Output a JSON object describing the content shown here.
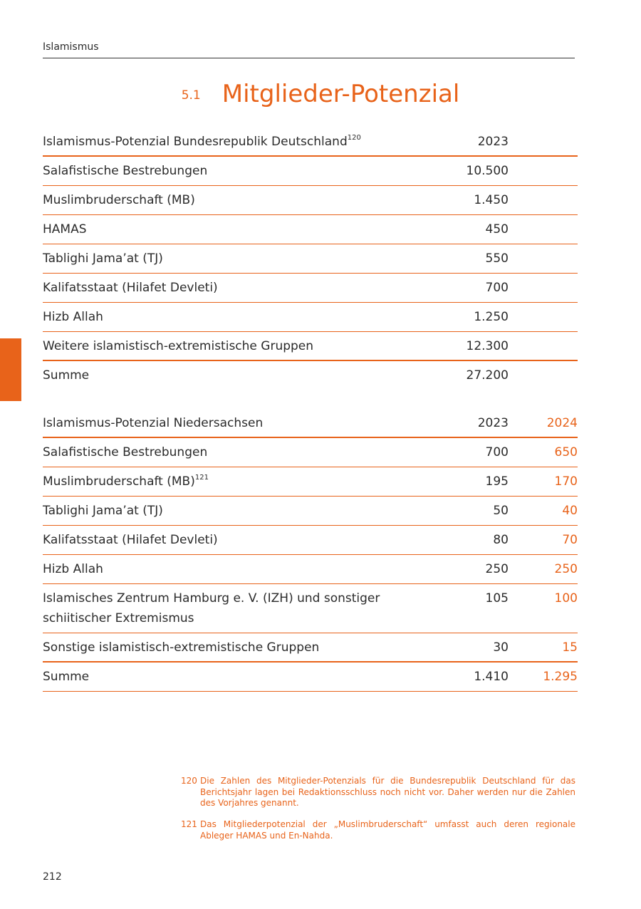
{
  "header": {
    "running_title": "Islamismus"
  },
  "section": {
    "number": "5.1",
    "title": "Mitglieder-Potenzial"
  },
  "tables": [
    {
      "header": {
        "cells": [
          "Islamismus-Potenzial Bundesrepublik Deutschland",
          "2023"
        ],
        "footnote_ref": "120"
      },
      "rows": [
        {
          "cells": [
            "Salafistische Bestrebungen",
            "10.500"
          ]
        },
        {
          "cells": [
            "Muslimbruderschaft (MB)",
            "1.450"
          ]
        },
        {
          "cells": [
            "HAMAS",
            "450"
          ]
        },
        {
          "cells": [
            "Tablighi Jama’at (TJ)",
            "550"
          ]
        },
        {
          "cells": [
            "Kalifatsstaat (Hilafet Devleti)",
            "700"
          ]
        },
        {
          "cells": [
            "Hizb Allah",
            "1.250"
          ]
        },
        {
          "cells": [
            "Weitere islamistisch-extremistische Gruppen",
            "12.300"
          ]
        }
      ],
      "total": {
        "cells": [
          "Summe",
          "27.200"
        ]
      }
    },
    {
      "header": {
        "cells": [
          "Islamismus-Potenzial Niedersachsen",
          "2023",
          "2024"
        ]
      },
      "rows": [
        {
          "cells": [
            "Salafistische Bestrebungen",
            "700",
            "650"
          ]
        },
        {
          "cells": [
            "Muslimbruderschaft (MB)",
            "195",
            "170"
          ],
          "footnote_ref": "121"
        },
        {
          "cells": [
            "Tablighi Jama’at (TJ)",
            "50",
            "40"
          ]
        },
        {
          "cells": [
            "Kalifatsstaat (Hilafet Devleti)",
            "80",
            "70"
          ]
        },
        {
          "cells": [
            "Hizb Allah",
            "250",
            "250"
          ]
        },
        {
          "cells": [
            "Islamisches Zentrum Hamburg e. V. (IZH) und sonstiger schiitischer Extremismus",
            "105",
            "100"
          ]
        },
        {
          "cells": [
            "Sonstige islamistisch-extremistische Gruppen",
            "30",
            "15"
          ]
        }
      ],
      "total": {
        "cells": [
          "Summe",
          "1.410",
          "1.295"
        ]
      }
    }
  ],
  "footnotes": [
    {
      "number": "120",
      "text": "Die Zahlen des Mitglieder-Potenzials für die Bundesrepublik Deutschland für das Berichtsjahr lagen bei Redaktionsschluss noch nicht vor. Daher werden nur die Zahlen des Vorjahres genannt."
    },
    {
      "number": "121",
      "text": "Das Mitgliederpotenzial der „Muslimbruderschaft“ umfasst auch deren regionale Ableger HAMAS und En-Nahda."
    }
  ],
  "page_number": "212"
}
